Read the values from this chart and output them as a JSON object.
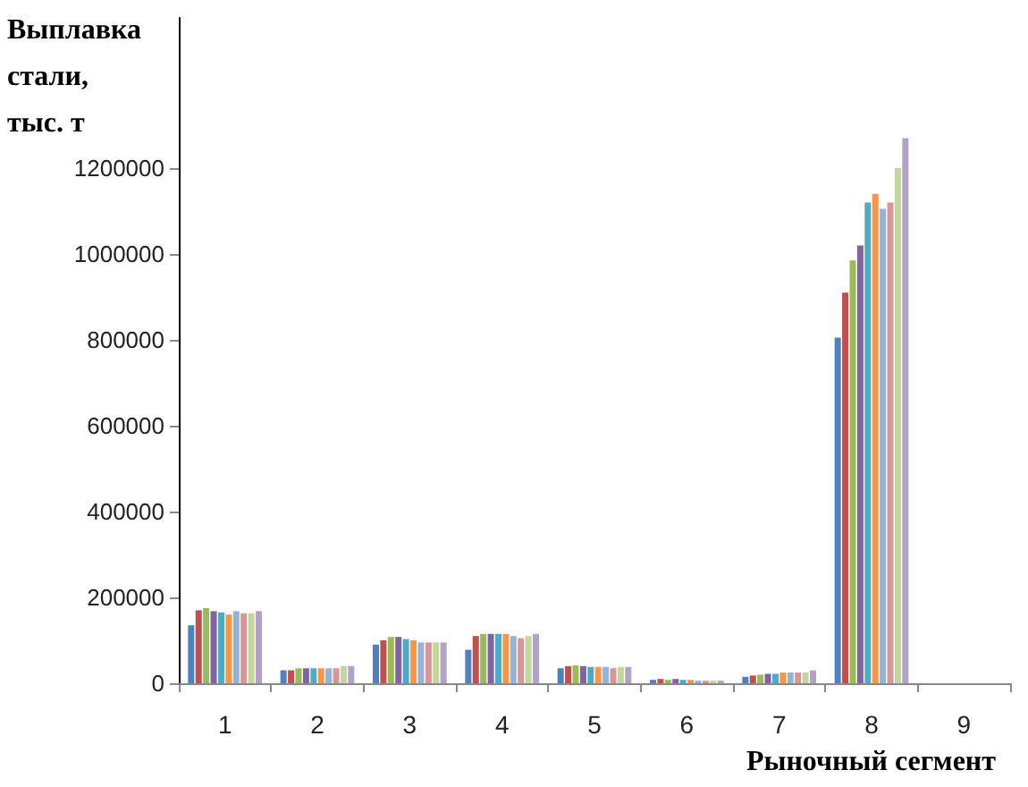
{
  "chart_data": {
    "type": "bar",
    "ylabel": "Выплавка\nстали,\nтыс. т",
    "xlabel": "Рыночный сегмент",
    "categories": [
      "1",
      "2",
      "3",
      "4",
      "5",
      "6",
      "7",
      "8",
      "9"
    ],
    "series": [
      {
        "color": "#4f81bd",
        "values": [
          135000,
          30000,
          90000,
          78000,
          35000,
          8000,
          15000,
          805000,
          null
        ]
      },
      {
        "color": "#c0504d",
        "values": [
          170000,
          30000,
          100000,
          110000,
          40000,
          10000,
          18000,
          910000,
          null
        ]
      },
      {
        "color": "#9bbb59",
        "values": [
          175000,
          35000,
          108000,
          115000,
          42000,
          8000,
          20000,
          985000,
          null
        ]
      },
      {
        "color": "#8064a2",
        "values": [
          168000,
          35000,
          108000,
          115000,
          40000,
          10000,
          22000,
          1020000,
          null
        ]
      },
      {
        "color": "#4bacc6",
        "values": [
          165000,
          35000,
          103000,
          115000,
          38000,
          8000,
          22000,
          1120000,
          null
        ]
      },
      {
        "color": "#f79646",
        "values": [
          160000,
          35000,
          100000,
          115000,
          38000,
          8000,
          25000,
          1140000,
          null
        ]
      },
      {
        "color": "#95b3d7",
        "values": [
          168000,
          35000,
          95000,
          110000,
          38000,
          6000,
          25000,
          1105000,
          null
        ]
      },
      {
        "color": "#d99694",
        "values": [
          163000,
          35000,
          95000,
          105000,
          35000,
          6000,
          25000,
          1120000,
          null
        ]
      },
      {
        "color": "#c3d69b",
        "values": [
          163000,
          40000,
          95000,
          110000,
          38000,
          6000,
          25000,
          1200000,
          null
        ]
      },
      {
        "color": "#b2a2c7",
        "values": [
          168000,
          40000,
          95000,
          115000,
          38000,
          6000,
          30000,
          1270000,
          null
        ]
      }
    ],
    "ylim": [
      0,
      1550000
    ],
    "yticks": [
      0,
      200000,
      400000,
      600000,
      800000,
      1000000,
      1200000
    ],
    "grid": false
  }
}
